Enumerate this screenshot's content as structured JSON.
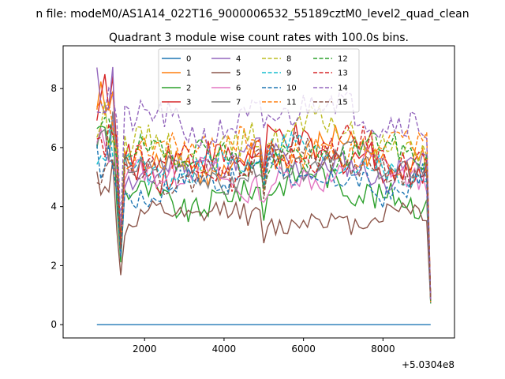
{
  "chart_data": {
    "type": "line",
    "suptitle": "n file: modeM0/AS1A14_022T16_9000006532_55189cztM0_level2_quad_clean",
    "title": "Quadrant 3 module wise count rates with 100.0s bins.",
    "xlabel": "",
    "ylabel": "",
    "x_offset_label": "+5.0304e8",
    "xlim": [
      -50,
      9800
    ],
    "ylim": [
      -0.45,
      9.45
    ],
    "xticks": [
      2000,
      4000,
      6000,
      8000
    ],
    "yticks": [
      0,
      2,
      4,
      6,
      8
    ],
    "xtick_labels": [
      "2000",
      "4000",
      "6000",
      "8000"
    ],
    "ytick_labels": [
      "0",
      "2",
      "4",
      "6",
      "8"
    ],
    "x_start": 800,
    "x_step": 100,
    "n_points": 85,
    "legend_position": "top-center",
    "legend_columns": 4,
    "series": [
      {
        "name": "0",
        "color": "#1f77b4",
        "dash": false,
        "base": 0.0,
        "amp": 0.0,
        "spike": 0.0
      },
      {
        "name": "1",
        "color": "#ff7f0e",
        "dash": false,
        "base": 5.5,
        "amp": 0.55,
        "spike": 8.4
      },
      {
        "name": "2",
        "color": "#2ca02c",
        "dash": false,
        "base": 4.4,
        "amp": 0.45,
        "spike": 7.2
      },
      {
        "name": "3",
        "color": "#d62728",
        "dash": false,
        "base": 5.6,
        "amp": 0.55,
        "spike": 8.7
      },
      {
        "name": "4",
        "color": "#9467bd",
        "dash": false,
        "base": 5.3,
        "amp": 0.45,
        "spike": 8.9
      },
      {
        "name": "5",
        "color": "#8c564b",
        "dash": false,
        "base": 3.5,
        "amp": 0.35,
        "spike": 5.5
      },
      {
        "name": "6",
        "color": "#e377c2",
        "dash": false,
        "base": 4.9,
        "amp": 0.45,
        "spike": 6.8
      },
      {
        "name": "7",
        "color": "#7f7f7f",
        "dash": false,
        "base": 5.2,
        "amp": 0.4,
        "spike": 7.0
      },
      {
        "name": "8",
        "color": "#bcbd22",
        "dash": true,
        "base": 6.1,
        "amp": 0.5,
        "spike": 7.6
      },
      {
        "name": "9",
        "color": "#17becf",
        "dash": true,
        "base": 5.4,
        "amp": 0.45,
        "spike": 6.8
      },
      {
        "name": "10",
        "color": "#1f77b4",
        "dash": true,
        "base": 4.8,
        "amp": 0.4,
        "spike": 6.2
      },
      {
        "name": "11",
        "color": "#ff7f0e",
        "dash": true,
        "base": 5.8,
        "amp": 0.5,
        "spike": 7.8
      },
      {
        "name": "12",
        "color": "#2ca02c",
        "dash": true,
        "base": 5.6,
        "amp": 0.45,
        "spike": 7.3
      },
      {
        "name": "13",
        "color": "#d62728",
        "dash": true,
        "base": 5.5,
        "amp": 0.5,
        "spike": 7.2
      },
      {
        "name": "14",
        "color": "#9467bd",
        "dash": true,
        "base": 6.9,
        "amp": 0.55,
        "spike": 8.6
      },
      {
        "name": "15",
        "color": "#8c564b",
        "dash": true,
        "base": 5.3,
        "amp": 0.45,
        "spike": 6.0
      }
    ]
  }
}
